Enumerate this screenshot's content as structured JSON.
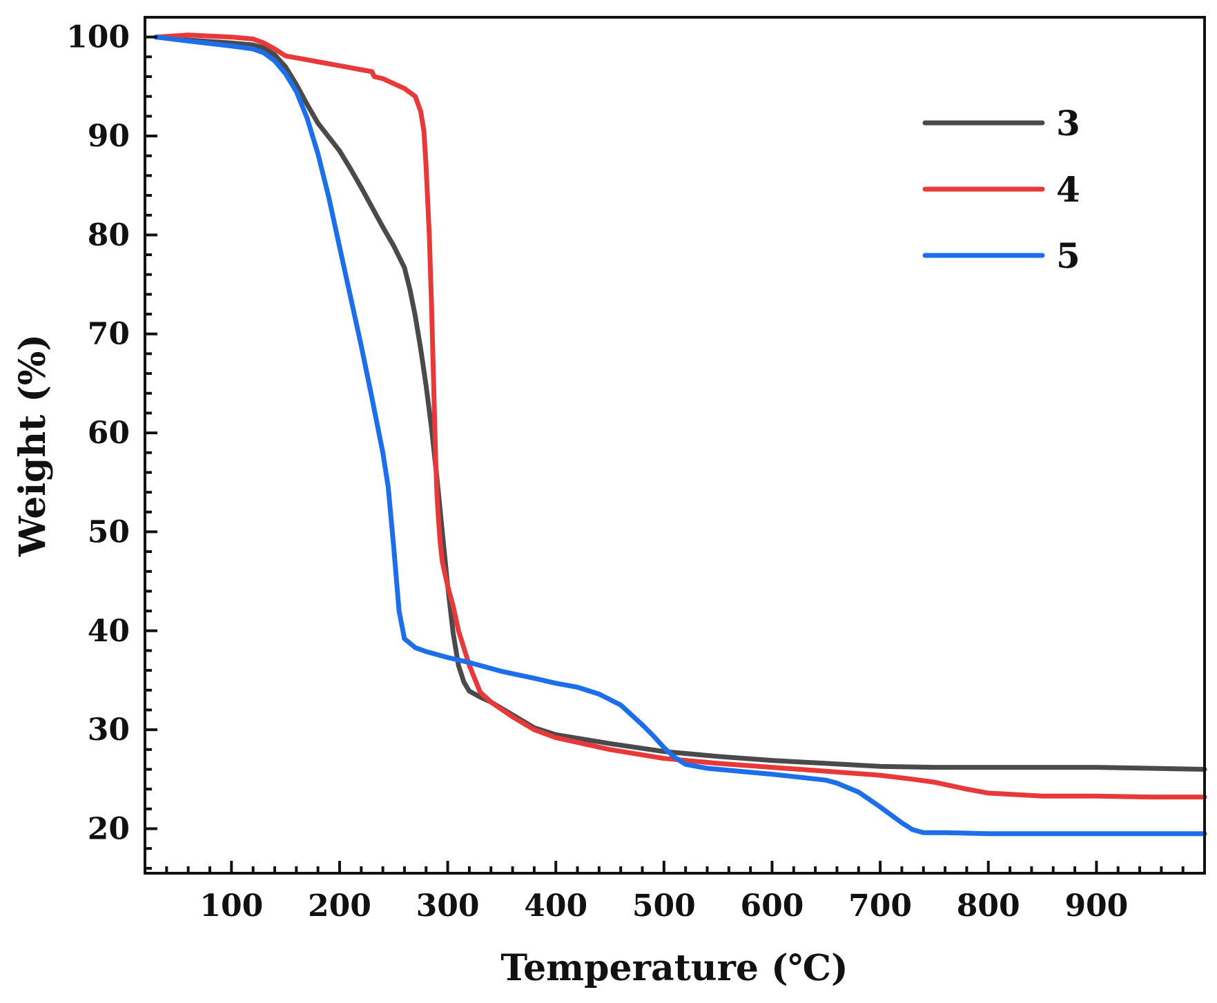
{
  "chart_data": {
    "type": "line",
    "title": "",
    "xlabel": "Temperature (℃)",
    "ylabel": "Weight (%)",
    "xlim": [
      20,
      1000
    ],
    "ylim": [
      15.5,
      102
    ],
    "xticks": [
      100,
      200,
      300,
      400,
      500,
      600,
      700,
      800,
      900
    ],
    "xtick_labels": [
      "100",
      "200",
      "300",
      "400",
      "500",
      "600",
      "700",
      "800",
      "900"
    ],
    "yticks": [
      20,
      30,
      40,
      50,
      60,
      70,
      80,
      90,
      100
    ],
    "ytick_labels": [
      "20",
      "30",
      "40",
      "50",
      "60",
      "70",
      "80",
      "90",
      "100"
    ],
    "grid": false,
    "legend_position": "top-right",
    "series": [
      {
        "name": "3",
        "color": "#4a4a4a",
        "x": [
          30,
          60,
          100,
          120,
          130,
          140,
          150,
          160,
          170,
          180,
          190,
          200,
          210,
          220,
          230,
          240,
          250,
          260,
          265,
          270,
          275,
          280,
          285,
          290,
          295,
          300,
          305,
          310,
          315,
          320,
          330,
          340,
          360,
          380,
          400,
          450,
          500,
          550,
          600,
          650,
          700,
          750,
          800,
          850,
          900,
          950,
          1000
        ],
        "y": [
          100,
          99.7,
          99.4,
          99.2,
          98.9,
          98.2,
          97,
          95.2,
          93.2,
          91.3,
          89.9,
          88.5,
          86.7,
          84.8,
          82.8,
          80.8,
          78.9,
          76.7,
          74.5,
          71.8,
          68.5,
          64.8,
          60.5,
          55.5,
          50,
          44.5,
          39.8,
          36.5,
          34.8,
          33.9,
          33.3,
          32.8,
          31.5,
          30.2,
          29.5,
          28.6,
          27.8,
          27.3,
          26.9,
          26.6,
          26.3,
          26.2,
          26.2,
          26.2,
          26.2,
          26.1,
          26.0
        ]
      },
      {
        "name": "4",
        "color": "#e8393a",
        "x": [
          30,
          60,
          80,
          100,
          120,
          130,
          140,
          150,
          160,
          170,
          180,
          200,
          220,
          230,
          232,
          240,
          260,
          270,
          275,
          278,
          280,
          283,
          285,
          287,
          289,
          290,
          291,
          292,
          293,
          295,
          300,
          305,
          310,
          320,
          330,
          340,
          360,
          380,
          400,
          450,
          500,
          550,
          600,
          650,
          700,
          730,
          750,
          780,
          800,
          850,
          900,
          950,
          1000
        ],
        "y": [
          100,
          100.2,
          100.1,
          100.0,
          99.8,
          99.4,
          98.8,
          98.1,
          97.9,
          97.7,
          97.5,
          97.1,
          96.7,
          96.5,
          96.0,
          95.8,
          94.8,
          94.0,
          92.5,
          90.5,
          87,
          80,
          73,
          65,
          57,
          54,
          52,
          50.5,
          49,
          47,
          44.5,
          42.5,
          40,
          36.5,
          33.8,
          32.8,
          31.3,
          30.0,
          29.2,
          28,
          27.1,
          26.6,
          26.2,
          25.8,
          25.4,
          25.0,
          24.7,
          24.0,
          23.6,
          23.3,
          23.3,
          23.2,
          23.2
        ]
      },
      {
        "name": "5",
        "color": "#1c6fe8",
        "x": [
          30,
          60,
          100,
          120,
          130,
          140,
          150,
          160,
          170,
          180,
          190,
          200,
          210,
          220,
          230,
          240,
          245,
          250,
          255,
          260,
          270,
          280,
          300,
          320,
          350,
          380,
          400,
          420,
          440,
          460,
          480,
          490,
          500,
          510,
          520,
          540,
          560,
          600,
          650,
          660,
          680,
          700,
          720,
          730,
          740,
          760,
          800,
          850,
          900,
          950,
          1000
        ],
        "y": [
          100,
          99.6,
          99.1,
          98.8,
          98.4,
          97.6,
          96.3,
          94.5,
          91.8,
          88.2,
          83.8,
          78.8,
          73.8,
          68.8,
          63.5,
          58,
          54.5,
          48.5,
          42,
          39.2,
          38.3,
          37.9,
          37.3,
          36.8,
          35.9,
          35.2,
          34.7,
          34.3,
          33.6,
          32.5,
          30.5,
          29.4,
          28.2,
          27.2,
          26.5,
          26.1,
          25.9,
          25.5,
          24.9,
          24.6,
          23.7,
          22.2,
          20.6,
          19.9,
          19.6,
          19.6,
          19.5,
          19.5,
          19.5,
          19.5,
          19.5
        ]
      }
    ]
  }
}
